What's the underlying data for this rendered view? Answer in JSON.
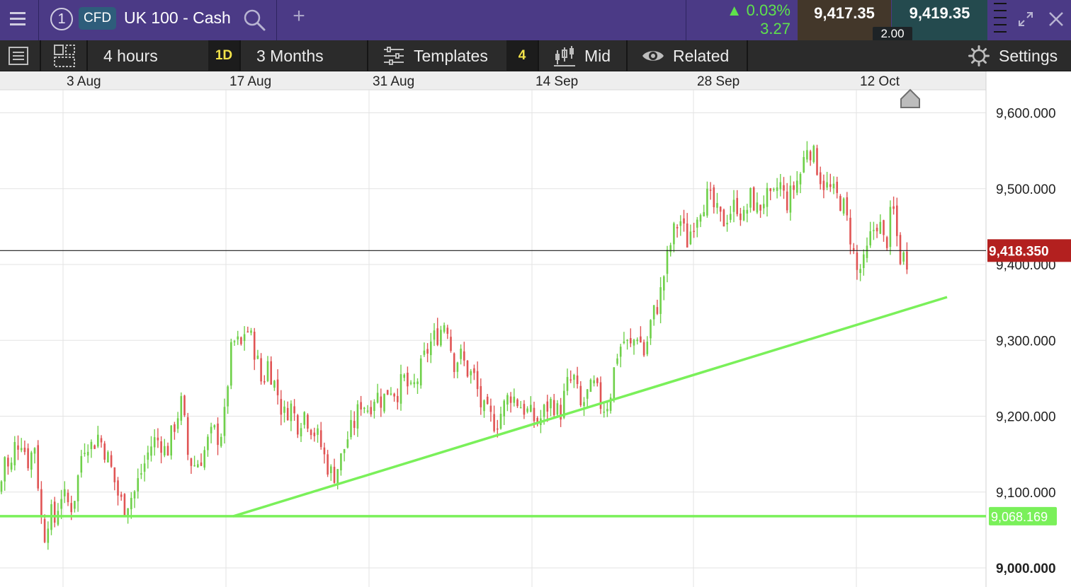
{
  "header": {
    "instrument_number": "1",
    "instrument_type": "CFD",
    "instrument_name": "UK 100 - Cash",
    "add_tab_glyph": "+",
    "change_percent": "0.03%",
    "change_points": "3.27",
    "sell_price": "9,417.35",
    "buy_price": "9,419.35",
    "spread": "2.00",
    "icons": [
      "menu-icon",
      "search-icon",
      "expand-icon",
      "close-icon"
    ]
  },
  "toolbar": {
    "interval": "4 hours",
    "interval_badge": "1D",
    "range": "3 Months",
    "templates": "Templates",
    "indicator_count": "4",
    "price_mode": "Mid",
    "related": "Related",
    "settings": "Settings",
    "icons": [
      "list-icon",
      "layout-icon",
      "templates-icon",
      "candles-icon",
      "eye-icon",
      "gear-icon"
    ]
  },
  "colors": {
    "up_candle": "#6fd04a",
    "down_candle": "#e05454",
    "trendline": "#7af05a",
    "current_price_tag": "#b3201f",
    "level_tag": "#7af05a"
  },
  "chart_data": {
    "type": "candlestick",
    "x_dates": [
      "3 Aug",
      "17 Aug",
      "31 Aug",
      "14 Sep",
      "28 Sep",
      "12 Oct"
    ],
    "y_ticks": [
      "9,600.000",
      "9,500.000",
      "9,400.000",
      "9,300.000",
      "9,200.000",
      "9,100.000",
      "9,000.000"
    ],
    "y_tick_values": [
      9600,
      9500,
      9400,
      9300,
      9200,
      9100,
      9000
    ],
    "ylim": [
      8980,
      9640
    ],
    "current_price": 9418.35,
    "current_price_label": "9,418.350",
    "horizontal_level": 9068.169,
    "horizontal_level_label": "9,068.169",
    "trendline": {
      "start": {
        "date": "18 Aug",
        "price": 9068
      },
      "end": {
        "date": "20 Oct",
        "price": 9357
      }
    },
    "close_path": [
      [
        0,
        9100
      ],
      [
        7,
        9150
      ],
      [
        14,
        9120
      ],
      [
        20,
        9160
      ],
      [
        30,
        9170
      ],
      [
        40,
        9140
      ],
      [
        50,
        9165
      ],
      [
        56,
        9080
      ],
      [
        62,
        9040
      ],
      [
        70,
        9075
      ],
      [
        78,
        9060
      ],
      [
        85,
        9100
      ],
      [
        92,
        9090
      ],
      [
        100,
        9080
      ],
      [
        107,
        9100
      ],
      [
        115,
        9150
      ],
      [
        122,
        9170
      ],
      [
        130,
        9160
      ],
      [
        138,
        9175
      ],
      [
        146,
        9160
      ],
      [
        154,
        9140
      ],
      [
        160,
        9120
      ],
      [
        167,
        9095
      ],
      [
        175,
        9080
      ],
      [
        182,
        9090
      ],
      [
        190,
        9100
      ],
      [
        197,
        9120
      ],
      [
        205,
        9140
      ],
      [
        212,
        9160
      ],
      [
        220,
        9170
      ],
      [
        228,
        9165
      ],
      [
        235,
        9150
      ],
      [
        242,
        9175
      ],
      [
        250,
        9200
      ],
      [
        257,
        9220
      ],
      [
        265,
        9150
      ],
      [
        272,
        9135
      ],
      [
        280,
        9140
      ],
      [
        287,
        9150
      ],
      [
        295,
        9170
      ],
      [
        302,
        9180
      ],
      [
        310,
        9170
      ],
      [
        317,
        9200
      ],
      [
        325,
        9280
      ],
      [
        332,
        9300
      ],
      [
        340,
        9290
      ],
      [
        347,
        9320
      ],
      [
        355,
        9300
      ],
      [
        362,
        9280
      ],
      [
        370,
        9240
      ],
      [
        378,
        9270
      ],
      [
        385,
        9250
      ],
      [
        392,
        9230
      ],
      [
        400,
        9200
      ],
      [
        410,
        9215
      ],
      [
        420,
        9190
      ],
      [
        430,
        9205
      ],
      [
        440,
        9185
      ],
      [
        450,
        9170
      ],
      [
        460,
        9140
      ],
      [
        470,
        9120
      ],
      [
        480,
        9140
      ],
      [
        490,
        9170
      ],
      [
        500,
        9190
      ],
      [
        510,
        9220
      ],
      [
        520,
        9210
      ],
      [
        530,
        9230
      ],
      [
        540,
        9220
      ],
      [
        550,
        9240
      ],
      [
        560,
        9230
      ],
      [
        570,
        9250
      ],
      [
        580,
        9230
      ],
      [
        590,
        9250
      ],
      [
        600,
        9280
      ],
      [
        610,
        9300
      ],
      [
        620,
        9310
      ],
      [
        630,
        9330
      ],
      [
        640,
        9270
      ],
      [
        650,
        9280
      ],
      [
        660,
        9260
      ],
      [
        670,
        9250
      ],
      [
        680,
        9210
      ],
      [
        690,
        9200
      ],
      [
        700,
        9190
      ],
      [
        710,
        9210
      ],
      [
        720,
        9230
      ],
      [
        730,
        9220
      ],
      [
        740,
        9210
      ],
      [
        750,
        9200
      ],
      [
        760,
        9190
      ],
      [
        770,
        9210
      ],
      [
        780,
        9220
      ],
      [
        790,
        9200
      ],
      [
        800,
        9240
      ],
      [
        810,
        9250
      ],
      [
        820,
        9210
      ],
      [
        830,
        9230
      ],
      [
        840,
        9240
      ],
      [
        850,
        9210
      ],
      [
        860,
        9220
      ],
      [
        870,
        9280
      ],
      [
        880,
        9300
      ],
      [
        890,
        9290
      ],
      [
        900,
        9310
      ],
      [
        910,
        9280
      ],
      [
        920,
        9330
      ],
      [
        930,
        9350
      ],
      [
        940,
        9400
      ],
      [
        950,
        9440
      ],
      [
        960,
        9460
      ],
      [
        970,
        9430
      ],
      [
        980,
        9460
      ],
      [
        990,
        9480
      ],
      [
        1000,
        9490
      ],
      [
        1010,
        9470
      ],
      [
        1020,
        9455
      ],
      [
        1030,
        9470
      ],
      [
        1040,
        9480
      ],
      [
        1050,
        9460
      ],
      [
        1060,
        9490
      ],
      [
        1070,
        9470
      ],
      [
        1080,
        9490
      ],
      [
        1090,
        9480
      ],
      [
        1100,
        9510
      ],
      [
        1110,
        9480
      ],
      [
        1120,
        9500
      ],
      [
        1130,
        9520
      ],
      [
        1140,
        9560
      ],
      [
        1150,
        9540
      ],
      [
        1160,
        9510
      ],
      [
        1170,
        9500
      ],
      [
        1180,
        9490
      ],
      [
        1190,
        9480
      ],
      [
        1200,
        9440
      ],
      [
        1210,
        9390
      ],
      [
        1220,
        9400
      ],
      [
        1230,
        9440
      ],
      [
        1240,
        9460
      ],
      [
        1250,
        9420
      ],
      [
        1260,
        9480
      ],
      [
        1270,
        9410
      ],
      [
        1276,
        9410
      ],
      [
        1282,
        9405
      ]
    ]
  }
}
